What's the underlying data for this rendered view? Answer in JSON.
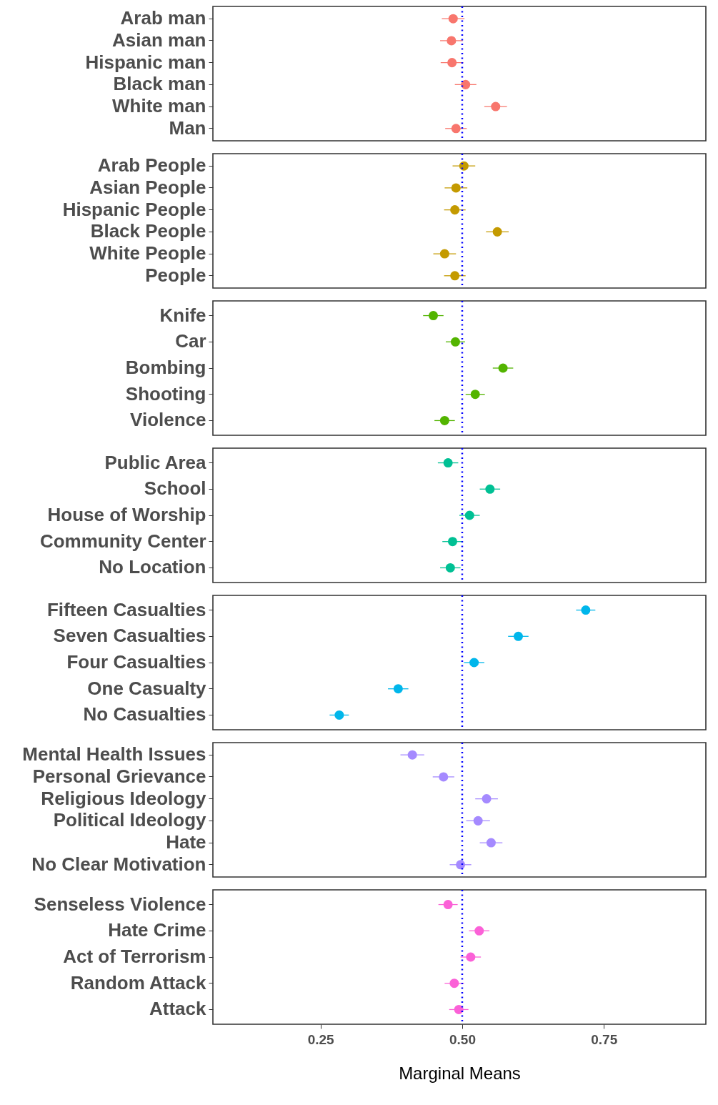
{
  "chart_data": [
    {
      "type": "scatter",
      "orientation": "horizontal",
      "categories": [
        "Arab man",
        "Asian man",
        "Hispanic man",
        "Black man",
        "White man",
        "Man"
      ],
      "series": [
        {
          "color": "#f8766d",
          "values": [
            0.484,
            0.481,
            0.482,
            0.506,
            0.559,
            0.489
          ],
          "errors": [
            0.02,
            0.02,
            0.02,
            0.019,
            0.02,
            0.019
          ]
        }
      ],
      "xlim": [
        0.06,
        0.93
      ],
      "ref_lines": [
        {
          "axis": "x",
          "value": 0.5,
          "color": "#0000ff",
          "line_style": "dotted"
        }
      ],
      "marker": "circle",
      "tick_labels": "y"
    },
    {
      "type": "scatter",
      "orientation": "horizontal",
      "categories": [
        "Arab People",
        "Asian People",
        "Hispanic People",
        "Black People",
        "White People",
        "People"
      ],
      "series": [
        {
          "color": "#c49a00",
          "values": [
            0.503,
            0.489,
            0.487,
            0.562,
            0.469,
            0.487
          ],
          "errors": [
            0.02,
            0.02,
            0.019,
            0.02,
            0.02,
            0.019
          ]
        }
      ],
      "xlim": [
        0.06,
        0.93
      ],
      "ref_lines": [
        {
          "axis": "x",
          "value": 0.5,
          "color": "#0000ff",
          "line_style": "dotted"
        }
      ],
      "marker": "circle",
      "tick_labels": "y"
    },
    {
      "type": "scatter",
      "orientation": "horizontal",
      "categories": [
        "Knife",
        "Car",
        "Bombing",
        "Shooting",
        "Violence"
      ],
      "series": [
        {
          "color": "#53b400",
          "values": [
            0.449,
            0.488,
            0.572,
            0.523,
            0.469
          ],
          "errors": [
            0.018,
            0.017,
            0.018,
            0.017,
            0.018
          ]
        }
      ],
      "xlim": [
        0.06,
        0.93
      ],
      "ref_lines": [
        {
          "axis": "x",
          "value": 0.5,
          "color": "#0000ff",
          "line_style": "dotted"
        }
      ],
      "marker": "circle",
      "tick_labels": "y"
    },
    {
      "type": "scatter",
      "orientation": "horizontal",
      "categories": [
        "Public Area",
        "School",
        "House of Worship",
        "Community Center",
        "No Location"
      ],
      "series": [
        {
          "color": "#00c094",
          "values": [
            0.475,
            0.549,
            0.513,
            0.483,
            0.479
          ],
          "errors": [
            0.018,
            0.018,
            0.018,
            0.018,
            0.018
          ]
        }
      ],
      "xlim": [
        0.06,
        0.93
      ],
      "ref_lines": [
        {
          "axis": "x",
          "value": 0.5,
          "color": "#0000ff",
          "line_style": "dotted"
        }
      ],
      "marker": "circle",
      "tick_labels": "y"
    },
    {
      "type": "scatter",
      "orientation": "horizontal",
      "categories": [
        "Fifteen Casualties",
        "Seven Casualties",
        "Four Casualties",
        "One Casualty",
        "No Casualties"
      ],
      "series": [
        {
          "color": "#00b6eb",
          "values": [
            0.718,
            0.599,
            0.521,
            0.387,
            0.283
          ],
          "errors": [
            0.017,
            0.018,
            0.018,
            0.018,
            0.017
          ]
        }
      ],
      "xlim": [
        0.06,
        0.93
      ],
      "ref_lines": [
        {
          "axis": "x",
          "value": 0.5,
          "color": "#0000ff",
          "line_style": "dotted"
        }
      ],
      "marker": "circle",
      "tick_labels": "y"
    },
    {
      "type": "scatter",
      "orientation": "horizontal",
      "categories": [
        "Mental Health Issues",
        "Personal Grievance",
        "Religious Ideology",
        "Political Ideology",
        "Hate",
        "No Clear Motivation"
      ],
      "series": [
        {
          "color": "#a58aff",
          "values": [
            0.412,
            0.467,
            0.543,
            0.528,
            0.551,
            0.497
          ],
          "errors": [
            0.021,
            0.019,
            0.02,
            0.021,
            0.02,
            0.019
          ]
        }
      ],
      "xlim": [
        0.06,
        0.93
      ],
      "ref_lines": [
        {
          "axis": "x",
          "value": 0.5,
          "color": "#0000ff",
          "line_style": "dotted"
        }
      ],
      "marker": "circle",
      "tick_labels": "y"
    },
    {
      "type": "scatter",
      "orientation": "horizontal",
      "categories": [
        "Senseless Violence",
        "Hate Crime",
        "Act of Terrorism",
        "Random Attack",
        "Attack"
      ],
      "series": [
        {
          "color": "#fb61d7",
          "values": [
            0.475,
            0.53,
            0.515,
            0.486,
            0.494
          ],
          "errors": [
            0.017,
            0.018,
            0.018,
            0.017,
            0.017
          ]
        }
      ],
      "xlim": [
        0.06,
        0.93
      ],
      "xticks": [
        0.25,
        {
          "value": 0.5,
          "label": "0.50"
        },
        0.75
      ],
      "ref_lines": [
        {
          "axis": "x",
          "value": 0.5,
          "color": "#0000ff",
          "line_style": "dotted"
        }
      ],
      "marker": "circle",
      "xlabel": "Marginal Means"
    }
  ]
}
